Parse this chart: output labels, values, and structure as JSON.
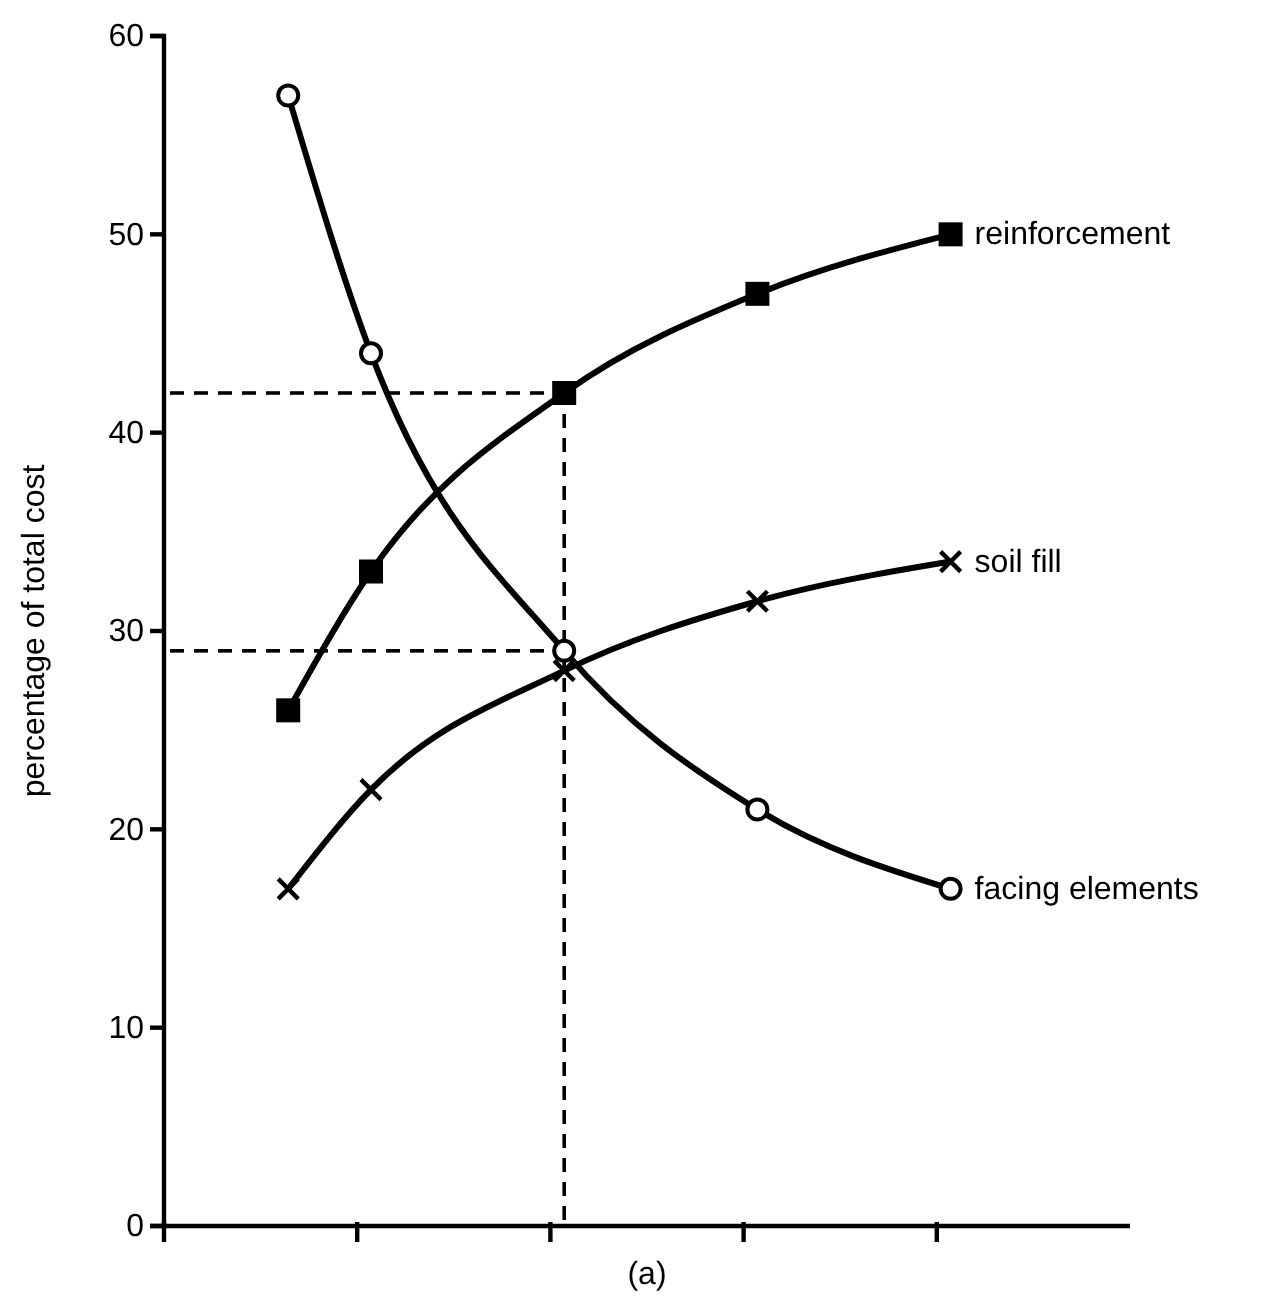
{
  "chart_data": {
    "type": "line",
    "ylabel": "percentage of total cost",
    "xlabel": "(a)",
    "categories": [
      null,
      null,
      null,
      null,
      null,
      null,
      null,
      null,
      null,
      null,
      null,
      null,
      null,
      null,
      null,
      null,
      null,
      null,
      null,
      null,
      null,
      null,
      null,
      null,
      null,
      null,
      null,
      null,
      null,
      null,
      null,
      null,
      null,
      null,
      null
    ],
    "ylim": [
      0,
      60
    ],
    "yticks": [
      0,
      10,
      20,
      30,
      40,
      50,
      60
    ],
    "legend": "right",
    "tick_labels": "y",
    "line_style": "solid",
    "series": [
      {
        "name": "reinforcement",
        "color": "#000000",
        "marker": "square",
        "values": [
          null,
          null,
          null,
          null,
          26,
          null,
          null,
          33,
          null,
          null,
          null,
          null,
          null,
          null,
          42,
          null,
          null,
          null,
          null,
          null,
          null,
          47,
          null,
          null,
          null,
          null,
          null,
          null,
          50,
          null,
          null,
          null,
          null,
          null,
          null
        ]
      },
      {
        "name": "soil fill",
        "color": "#000000",
        "marker": "cross",
        "values": [
          null,
          null,
          null,
          null,
          17,
          null,
          null,
          22,
          null,
          null,
          null,
          null,
          null,
          null,
          28,
          null,
          null,
          null,
          null,
          null,
          null,
          31.5,
          null,
          null,
          null,
          null,
          null,
          null,
          33.5,
          null,
          null,
          null,
          null,
          null,
          null
        ]
      },
      {
        "name": "facing elements",
        "color": "#000000",
        "marker": "circle",
        "values": [
          null,
          null,
          null,
          null,
          57,
          null,
          null,
          44,
          null,
          null,
          null,
          null,
          null,
          null,
          29,
          null,
          null,
          null,
          null,
          null,
          null,
          21,
          null,
          null,
          null,
          null,
          null,
          null,
          17,
          null,
          null,
          null,
          null,
          null,
          null
        ]
      }
    ]
  }
}
